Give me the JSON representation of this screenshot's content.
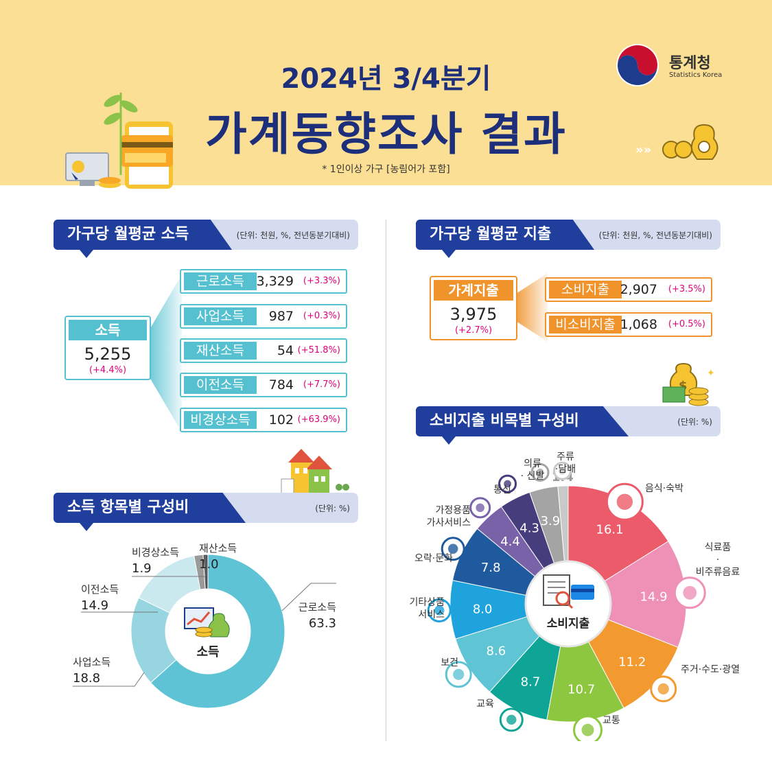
{
  "header": {
    "subtitle": "2024년 3/4분기",
    "title": "가계동향조사 결과",
    "note": "* 1인이상 가구 [농림어가 포함]",
    "logo_name": "통계청",
    "logo_en": "Statistics Korea"
  },
  "income": {
    "section_title": "가구당 월평균 소득",
    "unit": "(단위: 천원, %, 전년동분기대비)",
    "total": {
      "label": "소득",
      "value": "5,255",
      "change": "(+4.4%)"
    },
    "items": [
      {
        "label": "근로소득",
        "value": "3,329",
        "change": "(+3.3%)"
      },
      {
        "label": "사업소득",
        "value": "987",
        "change": "(+0.3%)"
      },
      {
        "label": "재산소득",
        "value": "54",
        "change": "(+51.8%)"
      },
      {
        "label": "이전소득",
        "value": "784",
        "change": "(+7.7%)"
      },
      {
        "label": "비경상소득",
        "value": "102",
        "change": "(+63.9%)"
      }
    ]
  },
  "expenditure": {
    "section_title": "가구당 월평균 지출",
    "unit": "(단위: 천원, %, 전년동분기대비)",
    "total": {
      "label": "가계지출",
      "value": "3,975",
      "change": "(+2.7%)"
    },
    "items": [
      {
        "label": "소비지출",
        "value": "2,907",
        "change": "(+3.5%)"
      },
      {
        "label": "비소비지출",
        "value": "1,068",
        "change": "(+0.5%)"
      }
    ]
  },
  "income_comp": {
    "section_title": "소득 항목별 구성비",
    "unit": "(단위: %)",
    "center_label": "소득"
  },
  "consumption_comp": {
    "section_title": "소비지출 비목별 구성비",
    "unit": "(단위: %)",
    "center_label": "소비지출"
  },
  "chart_data": [
    {
      "type": "pie",
      "categories": [
        "근로소득",
        "비경상소득",
        "재산소득",
        "이전소득",
        "사업소득"
      ],
      "values": [
        63.3,
        1.9,
        1.0,
        14.9,
        18.8
      ],
      "labels_in_order_clockwise_from_top": [
        "재산소득",
        "근로소득",
        "사업소득",
        "이전소득",
        "비경상소득"
      ],
      "colors": {
        "근로소득": "#5ec3d4",
        "사업소득": "#97d6e0",
        "이전소득": "#c9e9ef",
        "비경상소득": "#9a9a9a",
        "재산소득": "#555555"
      }
    },
    {
      "type": "pie",
      "categories": [
        "음식·숙박",
        "식료품·비주류음료",
        "주거·수도·광열",
        "교통",
        "교육",
        "보건",
        "기타상품·서비스",
        "오락·문화",
        "가정용품·가사서비스",
        "통신",
        "의류·신발",
        "주류·담배"
      ],
      "values": [
        16.1,
        14.9,
        11.2,
        10.7,
        8.7,
        8.6,
        8.0,
        7.8,
        4.4,
        4.3,
        3.9,
        1.4
      ],
      "colors": [
        "#ec5b6a",
        "#ef91b6",
        "#f29a2f",
        "#8dc63f",
        "#0fa596",
        "#5fc4d3",
        "#1ea3dc",
        "#1f5a9e",
        "#7a62a8",
        "#463d7d",
        "#a4a4a4",
        "#c9c9c9"
      ]
    }
  ]
}
